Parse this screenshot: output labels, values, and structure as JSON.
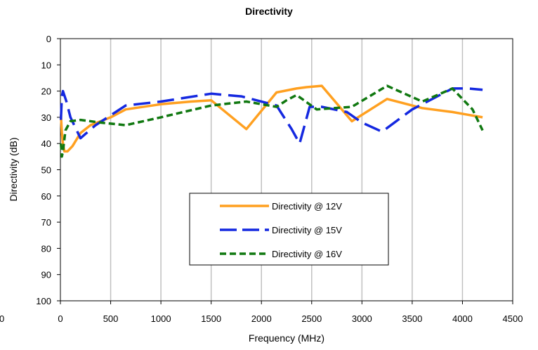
{
  "chart_data": {
    "type": "line",
    "title": "Directivity",
    "xlabel": "Frequency (MHz)",
    "ylabel": "Directivity (dB)",
    "xlim": [
      0,
      4500
    ],
    "ylim": [
      0,
      100
    ],
    "y_inverted": true,
    "x_ticks": [
      0,
      500,
      1000,
      1500,
      2000,
      2500,
      3000,
      3500,
      4000,
      4500
    ],
    "y_ticks": [
      0,
      10,
      20,
      30,
      40,
      50,
      60,
      70,
      80,
      90,
      100
    ],
    "stray_tick_label": "0",
    "grid": "vertical",
    "legend_position": "center",
    "series": [
      {
        "name": "Directivity @ 12V",
        "color": "#ffa020",
        "dash": "solid",
        "points": [
          [
            5,
            29
          ],
          [
            15,
            36
          ],
          [
            25,
            40
          ],
          [
            40,
            43
          ],
          [
            70,
            43
          ],
          [
            120,
            41
          ],
          [
            200,
            36
          ],
          [
            300,
            33
          ],
          [
            500,
            30
          ],
          [
            650,
            27
          ],
          [
            1000,
            25
          ],
          [
            1300,
            24
          ],
          [
            1500,
            23.5
          ],
          [
            1850,
            34.5
          ],
          [
            2150,
            20.5
          ],
          [
            2350,
            19
          ],
          [
            2450,
            18.5
          ],
          [
            2600,
            18
          ],
          [
            2900,
            31.5
          ],
          [
            3250,
            23
          ],
          [
            3600,
            26.5
          ],
          [
            3900,
            28
          ],
          [
            4050,
            29
          ],
          [
            4200,
            30
          ]
        ]
      },
      {
        "name": "Directivity @ 15V",
        "color": "#1428e0",
        "dash": "long-dash",
        "points": [
          [
            5,
            31
          ],
          [
            15,
            22
          ],
          [
            25,
            20
          ],
          [
            60,
            24
          ],
          [
            100,
            30
          ],
          [
            200,
            38
          ],
          [
            350,
            33
          ],
          [
            650,
            25.5
          ],
          [
            1000,
            24
          ],
          [
            1500,
            21
          ],
          [
            1800,
            22
          ],
          [
            2150,
            25.5
          ],
          [
            2300,
            34.5
          ],
          [
            2380,
            40
          ],
          [
            2480,
            26
          ],
          [
            2600,
            26
          ],
          [
            2850,
            28
          ],
          [
            3000,
            32
          ],
          [
            3200,
            35.5
          ],
          [
            3500,
            27
          ],
          [
            3700,
            23
          ],
          [
            3900,
            19
          ],
          [
            4050,
            19
          ],
          [
            4200,
            19.5
          ]
        ]
      },
      {
        "name": "Directivity @ 16V",
        "color": "#107810",
        "dash": "short-dash",
        "points": [
          [
            5,
            40
          ],
          [
            15,
            45
          ],
          [
            25,
            43
          ],
          [
            50,
            35
          ],
          [
            100,
            31.5
          ],
          [
            200,
            31
          ],
          [
            400,
            32
          ],
          [
            650,
            33
          ],
          [
            1000,
            30
          ],
          [
            1500,
            25.5
          ],
          [
            1850,
            24
          ],
          [
            2150,
            26
          ],
          [
            2250,
            23.5
          ],
          [
            2350,
            21.5
          ],
          [
            2550,
            27
          ],
          [
            2900,
            26
          ],
          [
            3250,
            18
          ],
          [
            3600,
            24
          ],
          [
            3900,
            19
          ],
          [
            4100,
            27
          ],
          [
            4200,
            35
          ]
        ]
      }
    ]
  }
}
